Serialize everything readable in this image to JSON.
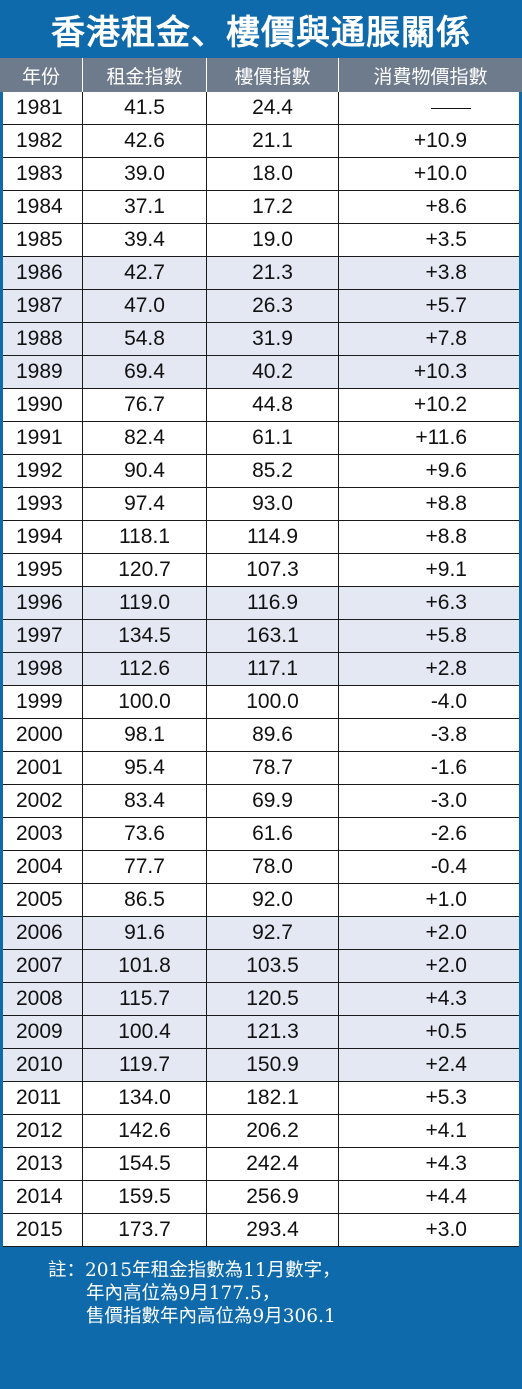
{
  "title": "香港租金、樓價與通脹關係",
  "columns": [
    "年份",
    "租金指數",
    "樓價指數",
    "消費物價指數"
  ],
  "colors": {
    "background": "#0e6aab",
    "header": "#6d7b8c",
    "row_shade": "#e4e8f3"
  },
  "rows": [
    {
      "year": "1981",
      "rent": "41.5",
      "price": "24.4",
      "cpi": "—"
    },
    {
      "year": "1982",
      "rent": "42.6",
      "price": "21.1",
      "cpi": "+10.9"
    },
    {
      "year": "1983",
      "rent": "39.0",
      "price": "18.0",
      "cpi": "+10.0"
    },
    {
      "year": "1984",
      "rent": "37.1",
      "price": "17.2",
      "cpi": "+8.6"
    },
    {
      "year": "1985",
      "rent": "39.4",
      "price": "19.0",
      "cpi": "+3.5"
    },
    {
      "year": "1986",
      "rent": "42.7",
      "price": "21.3",
      "cpi": "+3.8"
    },
    {
      "year": "1987",
      "rent": "47.0",
      "price": "26.3",
      "cpi": "+5.7"
    },
    {
      "year": "1988",
      "rent": "54.8",
      "price": "31.9",
      "cpi": "+7.8"
    },
    {
      "year": "1989",
      "rent": "69.4",
      "price": "40.2",
      "cpi": "+10.3"
    },
    {
      "year": "1990",
      "rent": "76.7",
      "price": "44.8",
      "cpi": "+10.2"
    },
    {
      "year": "1991",
      "rent": "82.4",
      "price": "61.1",
      "cpi": "+11.6"
    },
    {
      "year": "1992",
      "rent": "90.4",
      "price": "85.2",
      "cpi": "+9.6"
    },
    {
      "year": "1993",
      "rent": "97.4",
      "price": "93.0",
      "cpi": "+8.8"
    },
    {
      "year": "1994",
      "rent": "118.1",
      "price": "114.9",
      "cpi": "+8.8"
    },
    {
      "year": "1995",
      "rent": "120.7",
      "price": "107.3",
      "cpi": "+9.1"
    },
    {
      "year": "1996",
      "rent": "119.0",
      "price": "116.9",
      "cpi": "+6.3"
    },
    {
      "year": "1997",
      "rent": "134.5",
      "price": "163.1",
      "cpi": "+5.8"
    },
    {
      "year": "1998",
      "rent": "112.6",
      "price": "117.1",
      "cpi": "+2.8"
    },
    {
      "year": "1999",
      "rent": "100.0",
      "price": "100.0",
      "cpi": "-4.0"
    },
    {
      "year": "2000",
      "rent": "98.1",
      "price": "89.6",
      "cpi": "-3.8"
    },
    {
      "year": "2001",
      "rent": "95.4",
      "price": "78.7",
      "cpi": "-1.6"
    },
    {
      "year": "2002",
      "rent": "83.4",
      "price": "69.9",
      "cpi": "-3.0"
    },
    {
      "year": "2003",
      "rent": "73.6",
      "price": "61.6",
      "cpi": "-2.6"
    },
    {
      "year": "2004",
      "rent": "77.7",
      "price": "78.0",
      "cpi": "-0.4"
    },
    {
      "year": "2005",
      "rent": "86.5",
      "price": "92.0",
      "cpi": "+1.0"
    },
    {
      "year": "2006",
      "rent": "91.6",
      "price": "92.7",
      "cpi": "+2.0"
    },
    {
      "year": "2007",
      "rent": "101.8",
      "price": "103.5",
      "cpi": "+2.0"
    },
    {
      "year": "2008",
      "rent": "115.7",
      "price": "120.5",
      "cpi": "+4.3"
    },
    {
      "year": "2009",
      "rent": "100.4",
      "price": "121.3",
      "cpi": "+0.5"
    },
    {
      "year": "2010",
      "rent": "119.7",
      "price": "150.9",
      "cpi": "+2.4"
    },
    {
      "year": "2011",
      "rent": "134.0",
      "price": "182.1",
      "cpi": "+5.3"
    },
    {
      "year": "2012",
      "rent": "142.6",
      "price": "206.2",
      "cpi": "+4.1"
    },
    {
      "year": "2013",
      "rent": "154.5",
      "price": "242.4",
      "cpi": "+4.3"
    },
    {
      "year": "2014",
      "rent": "159.5",
      "price": "256.9",
      "cpi": "+4.4"
    },
    {
      "year": "2015",
      "rent": "173.7",
      "price": "293.4",
      "cpi": "+3.0"
    }
  ],
  "footnote": [
    "註：2015年租金指數為11月數字，",
    "年內高位為9月177.5，",
    "售價指數年內高位為9月306.1"
  ],
  "chart_data": {
    "type": "table",
    "title": "香港租金、樓價與通脹關係",
    "columns": [
      "年份",
      "租金指數",
      "樓價指數",
      "消費物價指數"
    ],
    "x": [
      1981,
      1982,
      1983,
      1984,
      1985,
      1986,
      1987,
      1988,
      1989,
      1990,
      1991,
      1992,
      1993,
      1994,
      1995,
      1996,
      1997,
      1998,
      1999,
      2000,
      2001,
      2002,
      2003,
      2004,
      2005,
      2006,
      2007,
      2008,
      2009,
      2010,
      2011,
      2012,
      2013,
      2014,
      2015
    ],
    "series": [
      {
        "name": "租金指數",
        "values": [
          41.5,
          42.6,
          39.0,
          37.1,
          39.4,
          42.7,
          47.0,
          54.8,
          69.4,
          76.7,
          82.4,
          90.4,
          97.4,
          118.1,
          120.7,
          119.0,
          134.5,
          112.6,
          100.0,
          98.1,
          95.4,
          83.4,
          73.6,
          77.7,
          86.5,
          91.6,
          101.8,
          115.7,
          100.4,
          119.7,
          134.0,
          142.6,
          154.5,
          159.5,
          173.7
        ]
      },
      {
        "name": "樓價指數",
        "values": [
          24.4,
          21.1,
          18.0,
          17.2,
          19.0,
          21.3,
          26.3,
          31.9,
          40.2,
          44.8,
          61.1,
          85.2,
          93.0,
          114.9,
          107.3,
          116.9,
          163.1,
          117.1,
          100.0,
          89.6,
          78.7,
          69.9,
          61.6,
          78.0,
          92.0,
          92.7,
          103.5,
          120.5,
          121.3,
          150.9,
          182.1,
          206.2,
          242.4,
          256.9,
          293.4
        ]
      },
      {
        "name": "消費物價指數",
        "values": [
          null,
          10.9,
          10.0,
          8.6,
          3.5,
          3.8,
          5.7,
          7.8,
          10.3,
          10.2,
          11.6,
          9.6,
          8.8,
          8.8,
          9.1,
          6.3,
          5.8,
          2.8,
          -4.0,
          -3.8,
          -1.6,
          -3.0,
          -2.6,
          -0.4,
          1.0,
          2.0,
          2.0,
          4.3,
          0.5,
          2.4,
          5.3,
          4.1,
          4.3,
          4.4,
          3.0
        ]
      }
    ]
  }
}
